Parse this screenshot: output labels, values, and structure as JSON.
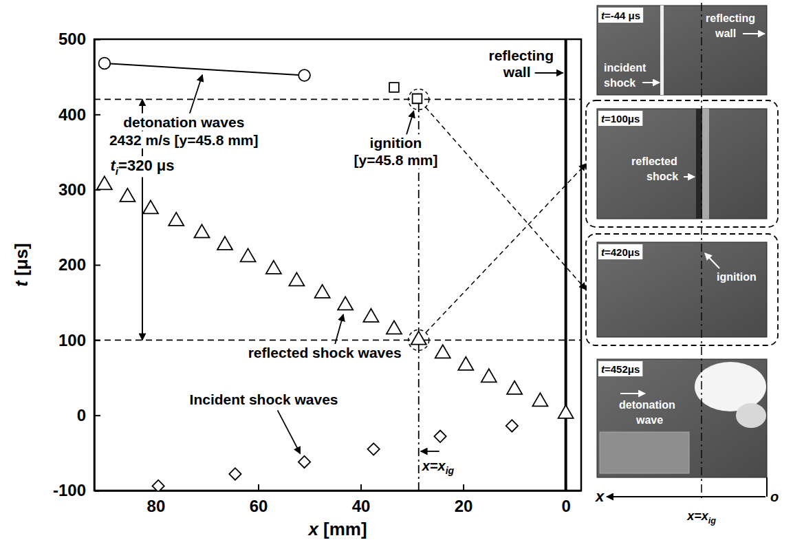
{
  "chart_data": {
    "type": "scatter",
    "xlabel": "x [mm]",
    "ylabel": "t [μs]",
    "xlim": [
      92,
      -3
    ],
    "xticks": [
      80,
      60,
      40,
      20,
      0
    ],
    "ylim": [
      -100,
      500
    ],
    "yticks": [
      -100,
      0,
      100,
      200,
      300,
      400,
      500
    ],
    "grid": false,
    "series": [
      {
        "name": "Incident shock waves",
        "marker": "diamond",
        "color": "#000000",
        "line_style": "none",
        "x": [
          79.5,
          64.5,
          51,
          37.5,
          24.5,
          10.5
        ],
        "y": [
          -94,
          -78,
          -62,
          -45,
          -28,
          -14
        ]
      },
      {
        "name": "reflected shock waves",
        "marker": "triangle",
        "color": "#000000",
        "line_style": "none",
        "x": [
          0,
          5,
          10,
          15,
          19.5,
          24,
          28.7,
          33.5,
          38,
          43,
          47.5,
          52.5,
          57,
          62,
          66.5,
          71,
          76,
          81,
          85.5,
          90
        ],
        "y": [
          2,
          18,
          34,
          50,
          66,
          82,
          100,
          114,
          130,
          146,
          162,
          178,
          194,
          210,
          226,
          242,
          258,
          274,
          290,
          306
        ]
      },
      {
        "name": "ignition",
        "annotation": "[y=45.8 mm]",
        "marker": "square",
        "color": "#000000",
        "line_style": "none",
        "x": [
          33.5,
          29
        ],
        "y": [
          436,
          421
        ]
      },
      {
        "name": "detonation waves",
        "annotation": "2432 m/s [y=45.8 mm]",
        "marker": "circle",
        "color": "#000000",
        "line_style": "solid",
        "x": [
          90,
          51
        ],
        "y": [
          468,
          452
        ]
      }
    ],
    "reference_lines": [
      {
        "axis": "x",
        "value": 0,
        "label": "reflecting wall",
        "line_style": "solid"
      },
      {
        "axis": "x",
        "value": 28.7,
        "label": [
          "x=x",
          "ig"
        ],
        "line_style": "dashdot"
      },
      {
        "axis": "y",
        "value": 100,
        "line_style": "dashed"
      },
      {
        "axis": "y",
        "value": 420,
        "line_style": "dashed"
      }
    ],
    "interval": {
      "from": 100,
      "value": 320,
      "label": [
        "t",
        "i",
        "=320 μs"
      ]
    },
    "photos": [
      {
        "time": -44,
        "time_label": "t=-44 μs",
        "labels": [
          "incident shock",
          "reflecting wall"
        ]
      },
      {
        "time": 100,
        "time_label": "t=100μs",
        "labels": [
          "reflected shock"
        ]
      },
      {
        "time": 420,
        "time_label": "t=420μs",
        "labels": [
          "ignition"
        ]
      },
      {
        "time": 452,
        "time_label": "t=452μs",
        "labels": [
          "detonation wave"
        ]
      }
    ],
    "photo_axis": {
      "x_label": "x",
      "origin_label": "o",
      "marker_label": [
        "x=x",
        "ig"
      ]
    }
  }
}
